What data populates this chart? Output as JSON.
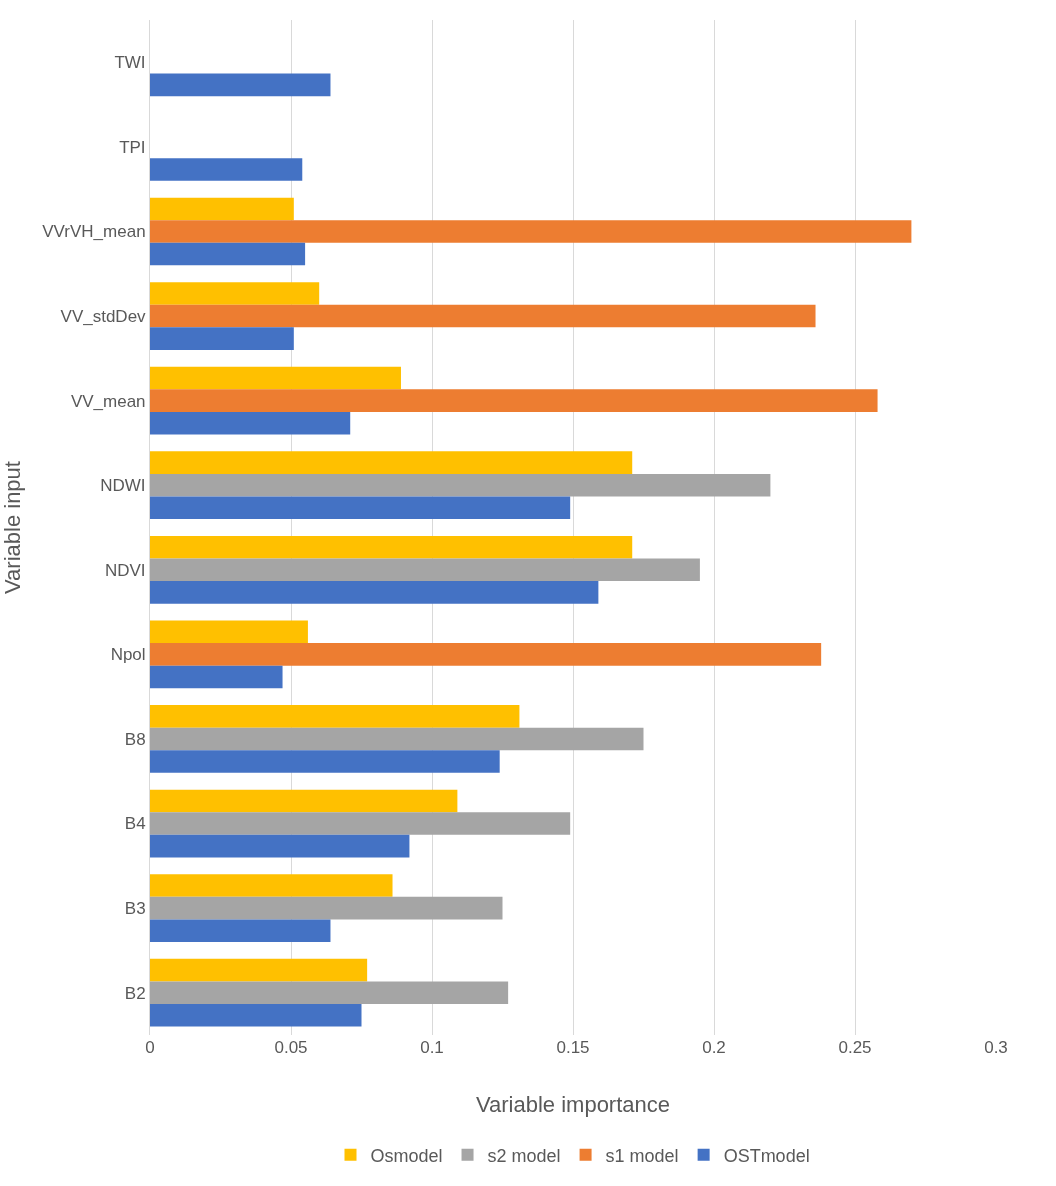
{
  "chart_data": {
    "type": "bar",
    "orientation": "horizontal",
    "xlabel": "Variable importance",
    "ylabel": "Variable input",
    "categories": [
      "TWI",
      "TPI",
      "VVrVH_mean",
      "VV_stdDev",
      "VV_mean",
      "NDWI",
      "NDVI",
      "Npol",
      "B8",
      "B4",
      "B3",
      "B2"
    ],
    "series": [
      {
        "name": "Osmodel",
        "color": "#ffc000",
        "values": [
          null,
          null,
          0.051,
          0.06,
          0.089,
          0.171,
          0.171,
          0.056,
          0.131,
          0.109,
          0.086,
          0.077
        ]
      },
      {
        "name": "s2 model",
        "color": "#a5a5a5",
        "values": [
          null,
          null,
          null,
          null,
          null,
          0.22,
          0.195,
          null,
          0.175,
          0.149,
          0.125,
          0.127
        ]
      },
      {
        "name": "s1 model",
        "color": "#ed7d31",
        "values": [
          null,
          null,
          0.27,
          0.236,
          0.258,
          null,
          null,
          0.238,
          null,
          null,
          null,
          null
        ]
      },
      {
        "name": "OSTmodel",
        "color": "#4472c4",
        "values": [
          0.064,
          0.054,
          0.055,
          0.051,
          0.071,
          0.149,
          0.159,
          0.047,
          0.124,
          0.092,
          0.064,
          0.075
        ]
      }
    ],
    "xlim": [
      0,
      0.3
    ],
    "xticks": [
      0,
      0.05,
      0.1,
      0.15,
      0.2,
      0.25,
      0.3
    ],
    "grid": "x",
    "legend": "bottom"
  }
}
